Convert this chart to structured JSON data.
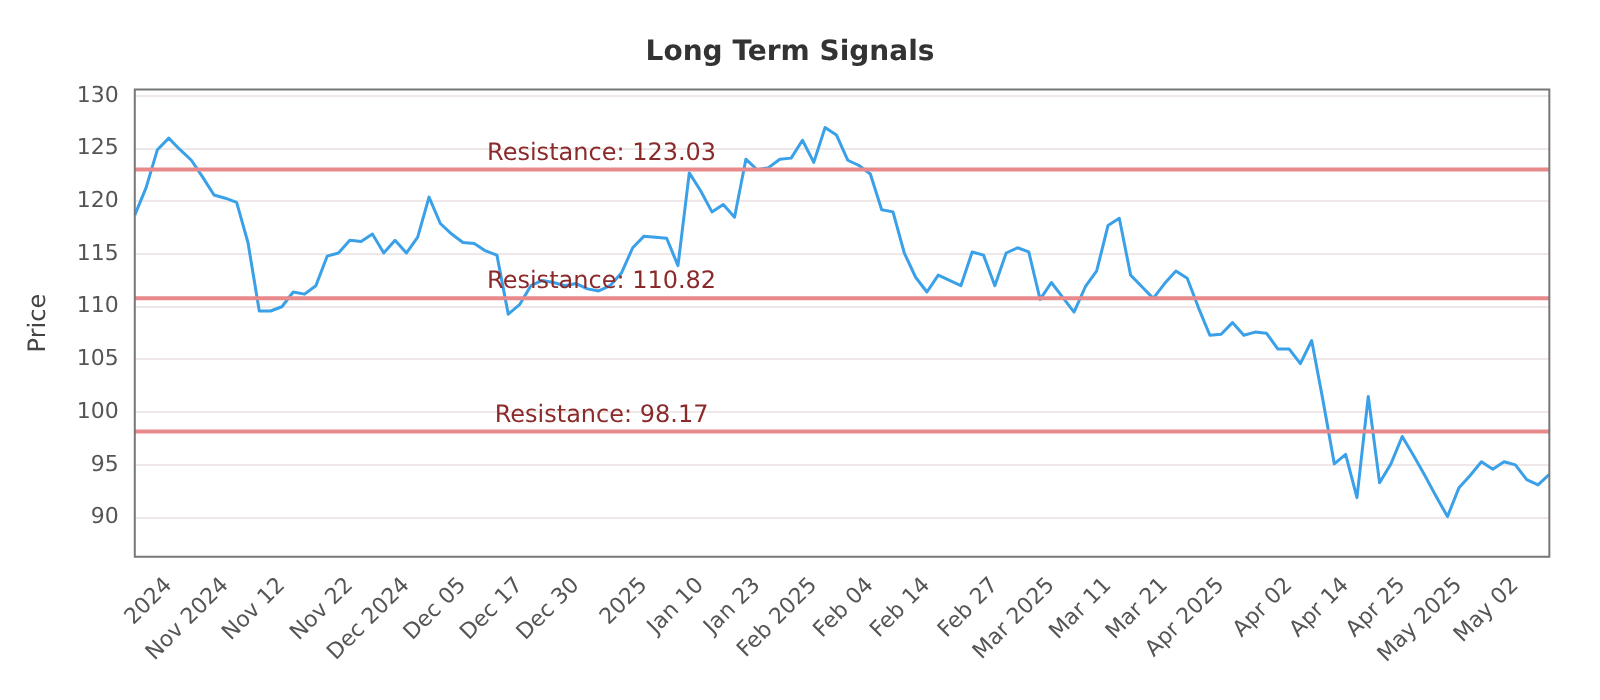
{
  "chart_data": {
    "type": "line",
    "title": "Long Term Signals",
    "ylabel": "Price",
    "categories": [
      null,
      null,
      null,
      "2024",
      null,
      null,
      null,
      null,
      "Nov 2024",
      null,
      null,
      null,
      null,
      "Nov 12",
      null,
      null,
      null,
      null,
      null,
      "Nov 22",
      null,
      null,
      null,
      null,
      "Dec 2024",
      null,
      null,
      null,
      null,
      "Dec 05",
      null,
      null,
      null,
      null,
      "Dec 17",
      null,
      null,
      null,
      null,
      "Dec 30",
      null,
      null,
      null,
      null,
      null,
      "2025",
      null,
      null,
      null,
      null,
      "Jan 10",
      null,
      null,
      null,
      null,
      "Jan 23",
      null,
      null,
      null,
      null,
      "Feb 2025",
      null,
      null,
      null,
      null,
      "Feb 04",
      null,
      null,
      null,
      null,
      "Feb 14",
      null,
      null,
      null,
      null,
      null,
      "Feb 27",
      null,
      null,
      null,
      null,
      "Mar 2025",
      null,
      null,
      null,
      null,
      "Mar 11",
      null,
      null,
      null,
      null,
      "Mar 21",
      null,
      null,
      null,
      null,
      "Apr 2025",
      null,
      null,
      null,
      null,
      null,
      "Apr 02",
      null,
      null,
      null,
      null,
      "Apr 14",
      null,
      null,
      null,
      null,
      "Apr 25",
      null,
      null,
      null,
      null,
      "May 2025",
      null,
      null,
      null,
      null,
      "May 02",
      null,
      null,
      null
    ],
    "series": [
      {
        "color": "#3aa0e8",
        "values": [
          118.7,
          121.3,
          124.9,
          126.0,
          124.9,
          123.9,
          122.3,
          120.6,
          120.3,
          119.9,
          116.1,
          109.6,
          109.6,
          110.0,
          111.4,
          111.2,
          112.0,
          114.8,
          115.1,
          116.3,
          116.2,
          116.9,
          115.1,
          116.3,
          115.1,
          116.6,
          120.4,
          117.9,
          116.9,
          116.1,
          116.0,
          115.3,
          114.9,
          109.3,
          110.2,
          112.0,
          112.5,
          112.3,
          112.0,
          112.2,
          111.7,
          111.5,
          112.0,
          113.2,
          115.6,
          116.7,
          116.6,
          116.5,
          113.9,
          122.7,
          121.0,
          119.0,
          119.7,
          118.5,
          124.0,
          123.0,
          123.2,
          124.0,
          124.1,
          125.8,
          123.7,
          127.0,
          126.3,
          123.9,
          123.4,
          122.6,
          119.2,
          119.0,
          115.1,
          112.8,
          111.4,
          113.0,
          112.5,
          112.0,
          115.2,
          114.9,
          112.0,
          115.1,
          115.6,
          115.2,
          110.7,
          112.3,
          110.9,
          109.5,
          111.9,
          113.4,
          117.7,
          118.4,
          113.0,
          111.9,
          110.8,
          112.2,
          113.4,
          112.7,
          109.9,
          107.3,
          107.4,
          108.5,
          107.3,
          107.6,
          107.5,
          106.0,
          106.0,
          104.6,
          106.8,
          101.1,
          95.1,
          96.0,
          91.9,
          101.5,
          93.3,
          95.1,
          97.7,
          95.9,
          94.0,
          92.0,
          90.1,
          92.8,
          94.0,
          95.3,
          94.6,
          95.3,
          95.0,
          93.6,
          93.1,
          94.1
        ]
      }
    ],
    "ylim": [
      86.3,
      130.6
    ],
    "yticks": [
      90,
      95,
      100,
      105,
      110,
      115,
      120,
      125,
      130
    ],
    "grid": "y",
    "legend": false,
    "marker": "none",
    "line_style": "solid",
    "ref_lines": [
      {
        "axis": "y",
        "value": 123.03,
        "label": "Resistance: 123.03",
        "color": "#e8898b"
      },
      {
        "axis": "y",
        "value": 110.82,
        "label": "Resistance: 110.82",
        "color": "#e8898b"
      },
      {
        "axis": "y",
        "value": 98.17,
        "label": "Resistance: 98.17",
        "color": "#e8898b"
      }
    ]
  }
}
